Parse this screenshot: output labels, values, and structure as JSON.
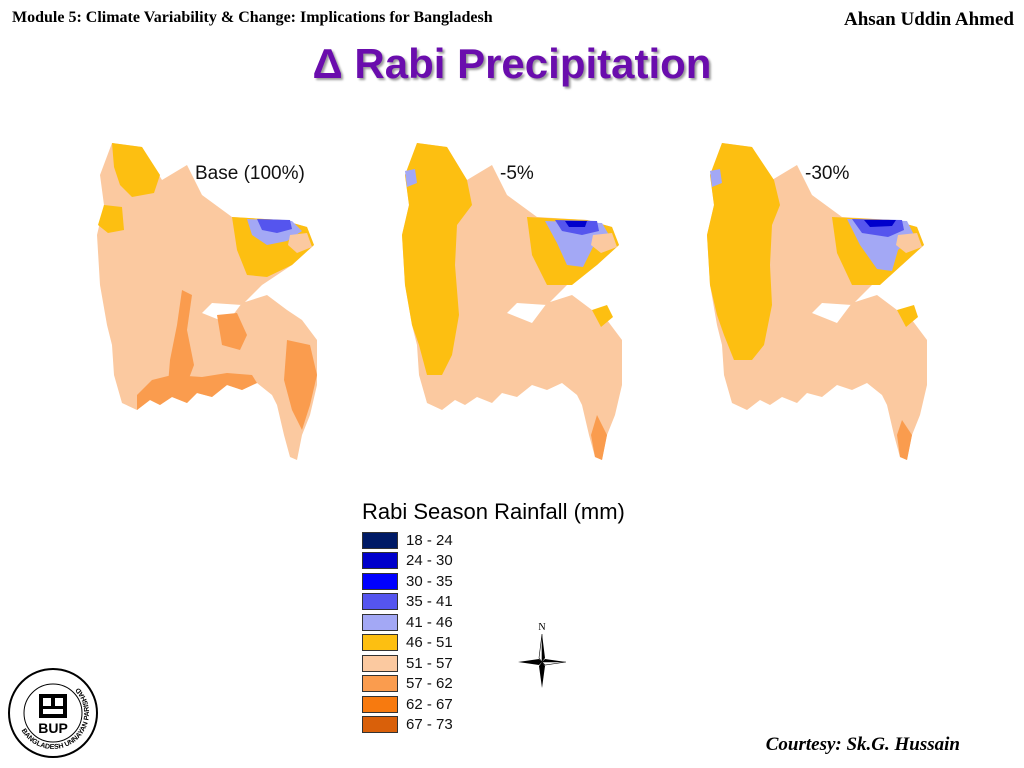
{
  "header": {
    "module_title": "Module 5: Climate Variability & Change: Implications for Bangladesh",
    "author": "Ahsan Uddin Ahmed"
  },
  "title": "Δ Rabi Precipitation",
  "maps": [
    {
      "label": "Base (100%)",
      "scenario": "base"
    },
    {
      "label": "-5%",
      "scenario": "minus5"
    },
    {
      "label": "-30%",
      "scenario": "minus30"
    }
  ],
  "legend": {
    "title": "Rabi Season Rainfall (mm)",
    "classes": [
      {
        "range": "18 - 24",
        "color": "#001a66"
      },
      {
        "range": "24 - 30",
        "color": "#0000cc"
      },
      {
        "range": "30 - 35",
        "color": "#0000ff"
      },
      {
        "range": "35 - 41",
        "color": "#5555ee"
      },
      {
        "range": "41 - 46",
        "color": "#a3a8f5"
      },
      {
        "range": "46 - 51",
        "color": "#fdbf11"
      },
      {
        "range": "51 - 57",
        "color": "#fbc9a0"
      },
      {
        "range": "57 - 62",
        "color": "#fa9c4e"
      },
      {
        "range": "62 - 67",
        "color": "#f77a0f"
      },
      {
        "range": "67 - 73",
        "color": "#d9600a"
      }
    ]
  },
  "compass": {
    "north_label": "N"
  },
  "logo": {
    "text": "BUP",
    "ring_text": "BANGLADESH UNNAYAN PARISHAD"
  },
  "courtesy": "Courtesy: Sk.G. Hussain"
}
